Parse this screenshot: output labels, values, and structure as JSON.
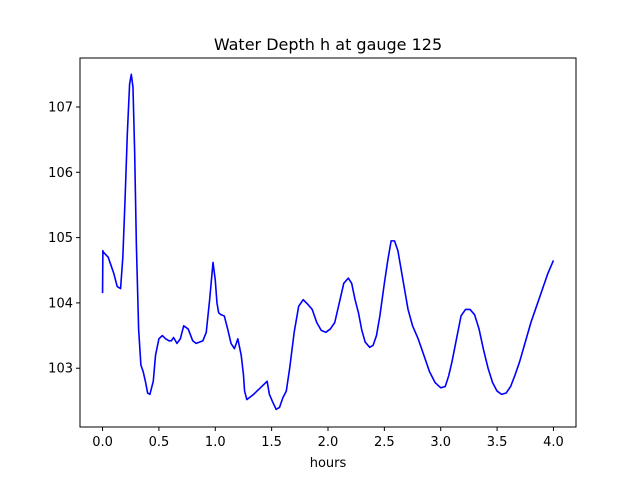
{
  "chart_data": {
    "type": "line",
    "title": "Water Depth h at gauge 125",
    "xlabel": "hours",
    "ylabel": "",
    "xlim": [
      -0.2,
      4.2
    ],
    "ylim": [
      102.1,
      107.75
    ],
    "xticks": [
      0.0,
      0.5,
      1.0,
      1.5,
      2.0,
      2.5,
      3.0,
      3.5,
      4.0
    ],
    "xtick_labels": [
      "0.0",
      "0.5",
      "1.0",
      "1.5",
      "2.0",
      "2.5",
      "3.0",
      "3.5",
      "4.0"
    ],
    "yticks": [
      103,
      104,
      105,
      106,
      107
    ],
    "ytick_labels": [
      "103",
      "104",
      "105",
      "106",
      "107"
    ],
    "grid": false,
    "series": [
      {
        "color": "#0000ff",
        "x": [
          0.0,
          0.003,
          0.006,
          0.05,
          0.1,
          0.13,
          0.16,
          0.18,
          0.2,
          0.22,
          0.24,
          0.255,
          0.27,
          0.285,
          0.3,
          0.32,
          0.34,
          0.36,
          0.38,
          0.4,
          0.42,
          0.45,
          0.47,
          0.5,
          0.53,
          0.56,
          0.59,
          0.61,
          0.63,
          0.66,
          0.69,
          0.72,
          0.76,
          0.8,
          0.83,
          0.86,
          0.89,
          0.92,
          0.95,
          0.98,
          1.0,
          1.015,
          1.03,
          1.05,
          1.08,
          1.11,
          1.14,
          1.17,
          1.2,
          1.23,
          1.25,
          1.26,
          1.28,
          1.31,
          1.34,
          1.37,
          1.4,
          1.43,
          1.46,
          1.48,
          1.51,
          1.54,
          1.57,
          1.6,
          1.63,
          1.66,
          1.7,
          1.74,
          1.78,
          1.82,
          1.86,
          1.9,
          1.94,
          1.98,
          2.02,
          2.06,
          2.1,
          2.14,
          2.18,
          2.21,
          2.24,
          2.27,
          2.3,
          2.33,
          2.37,
          2.4,
          2.43,
          2.46,
          2.5,
          2.53,
          2.56,
          2.59,
          2.62,
          2.65,
          2.68,
          2.71,
          2.75,
          2.8,
          2.85,
          2.9,
          2.95,
          3.0,
          3.04,
          3.07,
          3.1,
          3.14,
          3.18,
          3.22,
          3.26,
          3.3,
          3.34,
          3.38,
          3.42,
          3.46,
          3.5,
          3.54,
          3.58,
          3.62,
          3.66,
          3.7,
          3.75,
          3.8,
          3.85,
          3.9,
          3.95,
          4.0
        ],
        "values": [
          104.15,
          104.8,
          104.78,
          104.7,
          104.45,
          104.25,
          104.22,
          104.7,
          105.6,
          106.6,
          107.35,
          107.5,
          107.3,
          106.3,
          104.9,
          103.6,
          103.05,
          102.95,
          102.8,
          102.62,
          102.6,
          102.8,
          103.2,
          103.45,
          103.5,
          103.45,
          103.42,
          103.42,
          103.47,
          103.38,
          103.45,
          103.65,
          103.6,
          103.42,
          103.38,
          103.4,
          103.42,
          103.55,
          104.05,
          104.62,
          104.35,
          104.0,
          103.85,
          103.82,
          103.8,
          103.6,
          103.38,
          103.3,
          103.45,
          103.2,
          102.9,
          102.65,
          102.52,
          102.56,
          102.6,
          102.65,
          102.7,
          102.75,
          102.8,
          102.6,
          102.48,
          102.37,
          102.4,
          102.55,
          102.65,
          103.0,
          103.55,
          103.95,
          104.05,
          103.98,
          103.9,
          103.7,
          103.58,
          103.55,
          103.6,
          103.7,
          104.0,
          104.3,
          104.38,
          104.3,
          104.05,
          103.85,
          103.58,
          103.4,
          103.32,
          103.35,
          103.5,
          103.8,
          104.3,
          104.65,
          104.95,
          104.95,
          104.8,
          104.5,
          104.2,
          103.9,
          103.65,
          103.45,
          103.2,
          102.95,
          102.78,
          102.7,
          102.72,
          102.88,
          103.1,
          103.45,
          103.8,
          103.9,
          103.9,
          103.82,
          103.6,
          103.28,
          103.0,
          102.78,
          102.65,
          102.6,
          102.62,
          102.72,
          102.9,
          103.1,
          103.4,
          103.7,
          103.95,
          104.2,
          104.45,
          104.65
        ]
      }
    ]
  }
}
